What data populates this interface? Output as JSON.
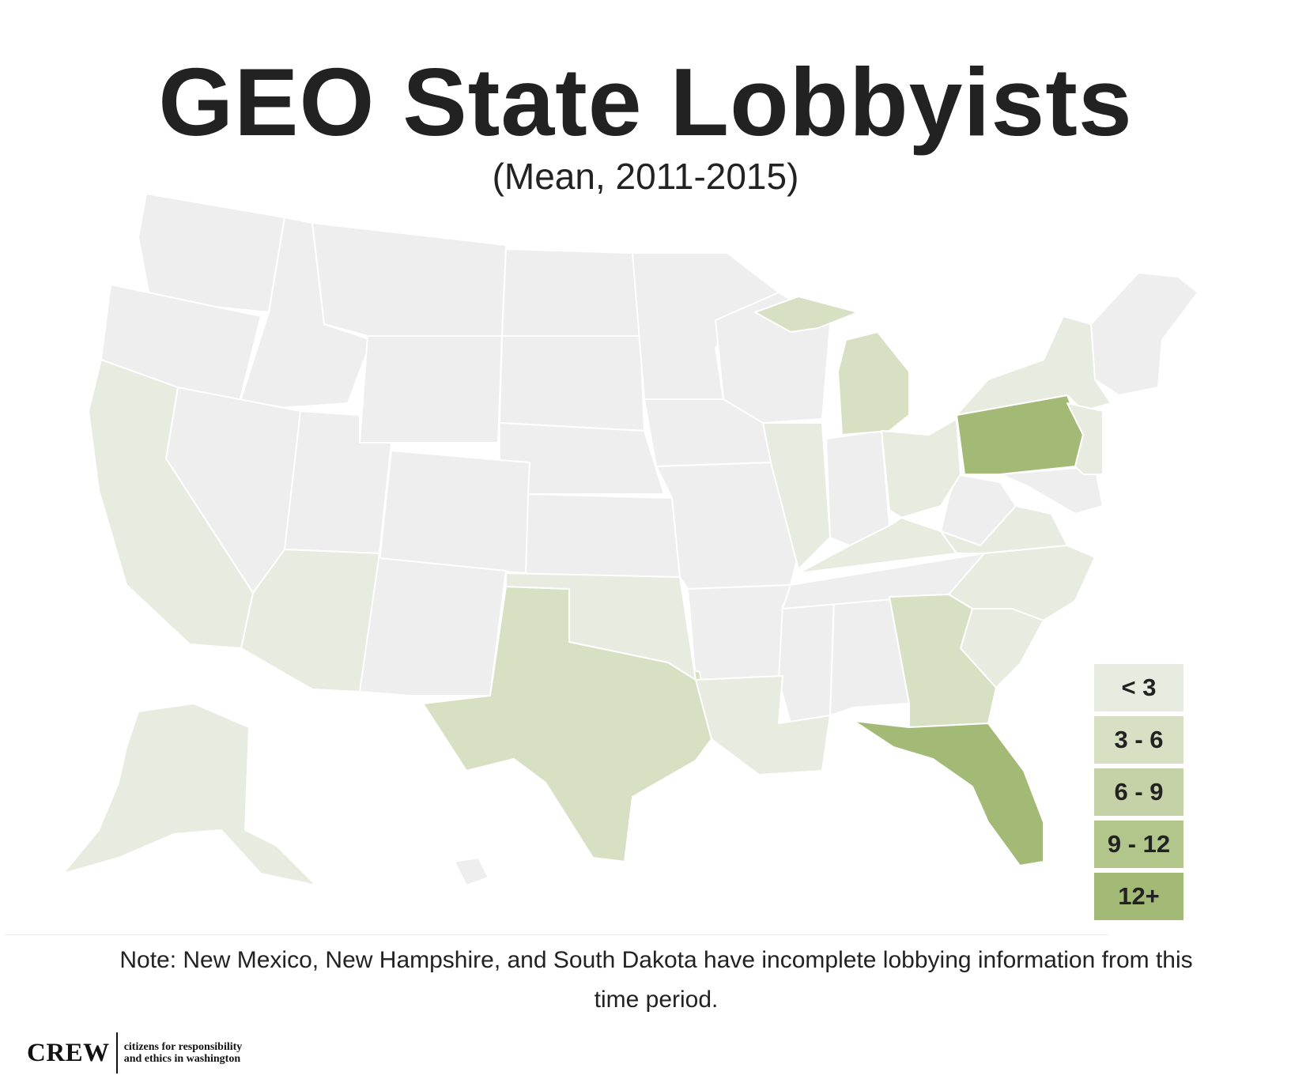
{
  "title": "GEO State Lobbyists",
  "subtitle": "(Mean, 2011-2015)",
  "legend": [
    {
      "label": "< 3",
      "color": "#e8ebdf"
    },
    {
      "label": "3 - 6",
      "color": "#d8e0c4"
    },
    {
      "label": "6 - 9",
      "color": "#c5d2a8"
    },
    {
      "label": "9 - 12",
      "color": "#b2c68c"
    },
    {
      "label": "12+",
      "color": "#a3ba77"
    }
  ],
  "no_data_color": "#eeeeee",
  "states": [
    {
      "name": "California",
      "category": "< 3"
    },
    {
      "name": "Arizona",
      "category": "< 3"
    },
    {
      "name": "Texas",
      "category": "3 - 6"
    },
    {
      "name": "Oklahoma",
      "category": "< 3"
    },
    {
      "name": "Louisiana",
      "category": "< 3"
    },
    {
      "name": "Illinois",
      "category": "< 3"
    },
    {
      "name": "Michigan",
      "category": "3 - 6"
    },
    {
      "name": "Ohio",
      "category": "< 3"
    },
    {
      "name": "Pennsylvania",
      "category": "12+"
    },
    {
      "name": "New York",
      "category": "< 3"
    },
    {
      "name": "New Jersey",
      "category": "< 3"
    },
    {
      "name": "Kentucky",
      "category": "< 3"
    },
    {
      "name": "Virginia",
      "category": "< 3"
    },
    {
      "name": "North Carolina",
      "category": "< 3"
    },
    {
      "name": "South Carolina",
      "category": "< 3"
    },
    {
      "name": "Georgia",
      "category": "3 - 6"
    },
    {
      "name": "Florida",
      "category": "12+"
    },
    {
      "name": "Alaska",
      "category": "< 3"
    }
  ],
  "note": "Note: New Mexico, New Hampshire, and South Dakota have incomplete lobbying information from this time period.",
  "logo": {
    "mark": "CREW",
    "line1": "citizens for responsibility",
    "line2": "and ethics in washington"
  }
}
